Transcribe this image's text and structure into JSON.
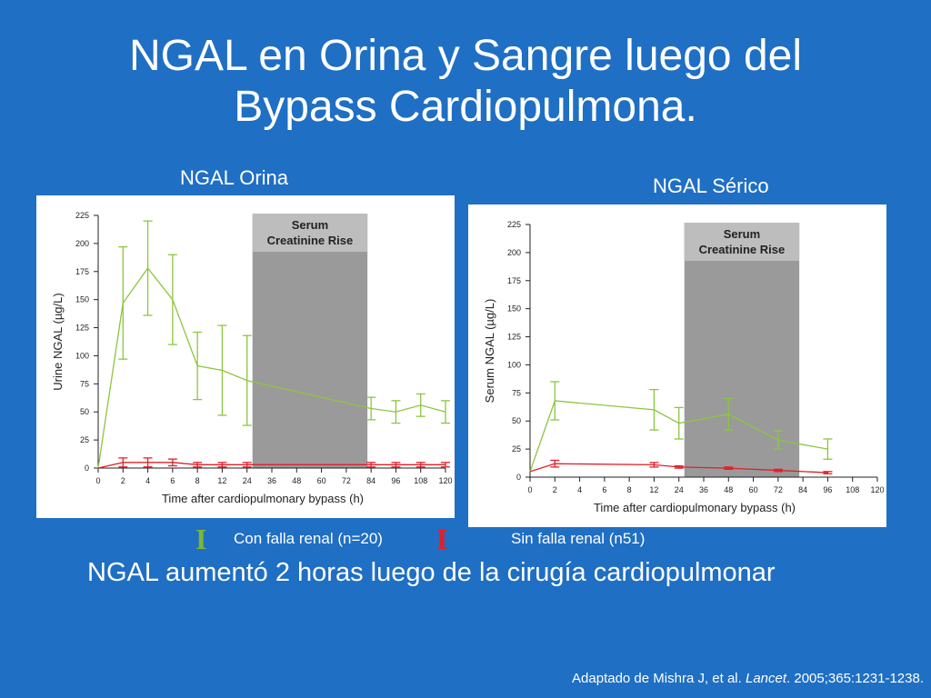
{
  "slide": {
    "title_line1": "NGAL en Orina y Sangre luego del",
    "title_line2": "Bypass Cardiopulmona.",
    "conclusion": "NGAL aumentó 2 horas luego de la cirugía cardiopulmonar",
    "citation_prefix": "Adaptado de Mishra J, et al. ",
    "citation_journal": "Lancet",
    "citation_suffix": ". 2005;365:1231-1238."
  },
  "legend": {
    "items": [
      {
        "glyph": "I",
        "label": "Con falla renal (n=20)",
        "color": "#7db832"
      },
      {
        "glyph": "I",
        "label": "Sin falla renal (n51)",
        "color": "#e0202a"
      }
    ]
  },
  "colors": {
    "background": "#1f6fc4",
    "panel": "#ffffff",
    "shade": "#9a9a9a",
    "shade_label_bg": "#bdbdbd",
    "renal_failure": "#8cc63f",
    "no_renal_failure": "#e0202a"
  },
  "chart_data": [
    {
      "type": "line",
      "heading": "NGAL Orina",
      "ylabel": "Urine NGAL (µg/L)",
      "xlabel": "Time after cardiopulmonary bypass (h)",
      "ylim": [
        0,
        225
      ],
      "yticks": [
        0,
        25,
        50,
        75,
        100,
        125,
        150,
        175,
        200,
        225
      ],
      "x_categories": [
        "0",
        "2",
        "4",
        "6",
        "8",
        "12",
        "24",
        "36",
        "48",
        "60",
        "72",
        "84",
        "96",
        "108",
        "120"
      ],
      "shaded_region": {
        "from": "24",
        "to": "84",
        "label_line1": "Serum",
        "label_line2": "Creatinine Rise"
      },
      "series": [
        {
          "key": "renal_failure",
          "points": [
            {
              "x": "0",
              "y": 0
            },
            {
              "x": "2",
              "y": 147,
              "err": 50
            },
            {
              "x": "4",
              "y": 178,
              "err": 42
            },
            {
              "x": "6",
              "y": 150,
              "err": 40
            },
            {
              "x": "8",
              "y": 91,
              "err": 30
            },
            {
              "x": "12",
              "y": 87,
              "err": 40
            },
            {
              "x": "24",
              "y": 78,
              "err": 40
            },
            {
              "x": "84",
              "y": 53,
              "err": 10
            },
            {
              "x": "96",
              "y": 50,
              "err": 10
            },
            {
              "x": "108",
              "y": 56,
              "err": 10
            },
            {
              "x": "120",
              "y": 50,
              "err": 10
            }
          ]
        },
        {
          "key": "no_renal_failure",
          "points": [
            {
              "x": "0",
              "y": 0
            },
            {
              "x": "2",
              "y": 5,
              "err": 4
            },
            {
              "x": "4",
              "y": 5,
              "err": 4
            },
            {
              "x": "6",
              "y": 5,
              "err": 3
            },
            {
              "x": "8",
              "y": 3,
              "err": 2
            },
            {
              "x": "12",
              "y": 3,
              "err": 2
            },
            {
              "x": "24",
              "y": 3,
              "err": 2
            },
            {
              "x": "84",
              "y": 3,
              "err": 2
            },
            {
              "x": "96",
              "y": 3,
              "err": 2
            },
            {
              "x": "108",
              "y": 3,
              "err": 2
            },
            {
              "x": "120",
              "y": 3,
              "err": 2
            }
          ]
        }
      ]
    },
    {
      "type": "line",
      "heading": "NGAL Sérico",
      "ylabel": "Serum NGAL (µg/L)",
      "xlabel": "Time after cardiopulmonary bypass (h)",
      "ylim": [
        0,
        225
      ],
      "yticks": [
        0,
        25,
        50,
        75,
        100,
        125,
        150,
        175,
        200,
        225
      ],
      "x_categories": [
        "0",
        "2",
        "4",
        "6",
        "8",
        "12",
        "24",
        "36",
        "48",
        "60",
        "72",
        "84",
        "96",
        "108",
        "120"
      ],
      "shaded_region": {
        "from": "24",
        "to": "84",
        "label_line1": "Serum",
        "label_line2": "Creatinine Rise"
      },
      "series": [
        {
          "key": "renal_failure",
          "points": [
            {
              "x": "0",
              "y": 5
            },
            {
              "x": "2",
              "y": 68,
              "err": 17
            },
            {
              "x": "12",
              "y": 60,
              "err": 18
            },
            {
              "x": "24",
              "y": 48,
              "err": 14
            },
            {
              "x": "48",
              "y": 56,
              "err": 14
            },
            {
              "x": "72",
              "y": 33,
              "err": 8
            },
            {
              "x": "96",
              "y": 25,
              "err": 9
            }
          ]
        },
        {
          "key": "no_renal_failure",
          "points": [
            {
              "x": "0",
              "y": 5
            },
            {
              "x": "2",
              "y": 12,
              "err": 3
            },
            {
              "x": "12",
              "y": 11,
              "err": 2
            },
            {
              "x": "24",
              "y": 9,
              "err": 1
            },
            {
              "x": "48",
              "y": 8,
              "err": 1
            },
            {
              "x": "72",
              "y": 6,
              "err": 1
            },
            {
              "x": "96",
              "y": 4,
              "err": 1
            }
          ]
        }
      ]
    }
  ]
}
